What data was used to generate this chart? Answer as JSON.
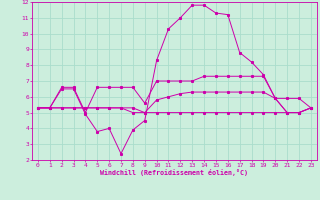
{
  "xlabel": "Windchill (Refroidissement éolien,°C)",
  "xlim": [
    -0.5,
    23.5
  ],
  "ylim": [
    2,
    12
  ],
  "xticks": [
    0,
    1,
    2,
    3,
    4,
    5,
    6,
    7,
    8,
    9,
    10,
    11,
    12,
    13,
    14,
    15,
    16,
    17,
    18,
    19,
    20,
    21,
    22,
    23
  ],
  "yticks": [
    2,
    3,
    4,
    5,
    6,
    7,
    8,
    9,
    10,
    11,
    12
  ],
  "bg_color": "#cceedd",
  "line_color": "#cc00aa",
  "grid_color": "#aaddcc",
  "lines": [
    {
      "x": [
        0,
        1,
        2,
        3,
        4,
        5,
        6,
        7,
        8,
        9,
        10,
        11,
        12,
        13,
        14,
        15,
        16,
        17,
        18,
        19,
        20,
        21,
        22,
        23
      ],
      "y": [
        5.3,
        5.3,
        6.6,
        6.6,
        5.0,
        6.6,
        6.6,
        6.6,
        6.6,
        5.6,
        7.0,
        7.0,
        7.0,
        7.0,
        7.3,
        7.3,
        7.3,
        7.3,
        7.3,
        7.3,
        5.9,
        5.9,
        5.9,
        5.3
      ]
    },
    {
      "x": [
        0,
        1,
        2,
        3,
        4,
        5,
        6,
        7,
        8,
        9,
        10,
        11,
        12,
        13,
        14,
        15,
        16,
        17,
        18,
        19,
        20,
        21,
        22,
        23
      ],
      "y": [
        5.3,
        5.3,
        5.3,
        5.3,
        5.3,
        5.3,
        5.3,
        5.3,
        5.3,
        5.0,
        5.0,
        5.0,
        5.0,
        5.0,
        5.0,
        5.0,
        5.0,
        5.0,
        5.0,
        5.0,
        5.0,
        5.0,
        5.0,
        5.3
      ]
    },
    {
      "x": [
        0,
        1,
        2,
        3,
        4,
        5,
        6,
        7,
        8,
        9,
        10,
        11,
        12,
        13,
        14,
        15,
        16,
        17,
        18,
        19,
        20,
        21,
        22,
        23
      ],
      "y": [
        5.3,
        5.3,
        6.5,
        6.5,
        4.9,
        3.8,
        4.0,
        2.4,
        3.9,
        4.5,
        8.3,
        10.3,
        11.0,
        11.8,
        11.8,
        11.3,
        11.2,
        8.8,
        8.2,
        7.4,
        5.9,
        5.0,
        5.0,
        5.3
      ]
    },
    {
      "x": [
        0,
        1,
        2,
        3,
        4,
        5,
        6,
        7,
        8,
        9,
        10,
        11,
        12,
        13,
        14,
        15,
        16,
        17,
        18,
        19,
        20,
        21,
        22,
        23
      ],
      "y": [
        5.3,
        5.3,
        5.3,
        5.3,
        5.3,
        5.3,
        5.3,
        5.3,
        5.0,
        5.0,
        5.8,
        6.0,
        6.2,
        6.3,
        6.3,
        6.3,
        6.3,
        6.3,
        6.3,
        6.3,
        5.9,
        5.0,
        5.0,
        5.3
      ]
    }
  ]
}
